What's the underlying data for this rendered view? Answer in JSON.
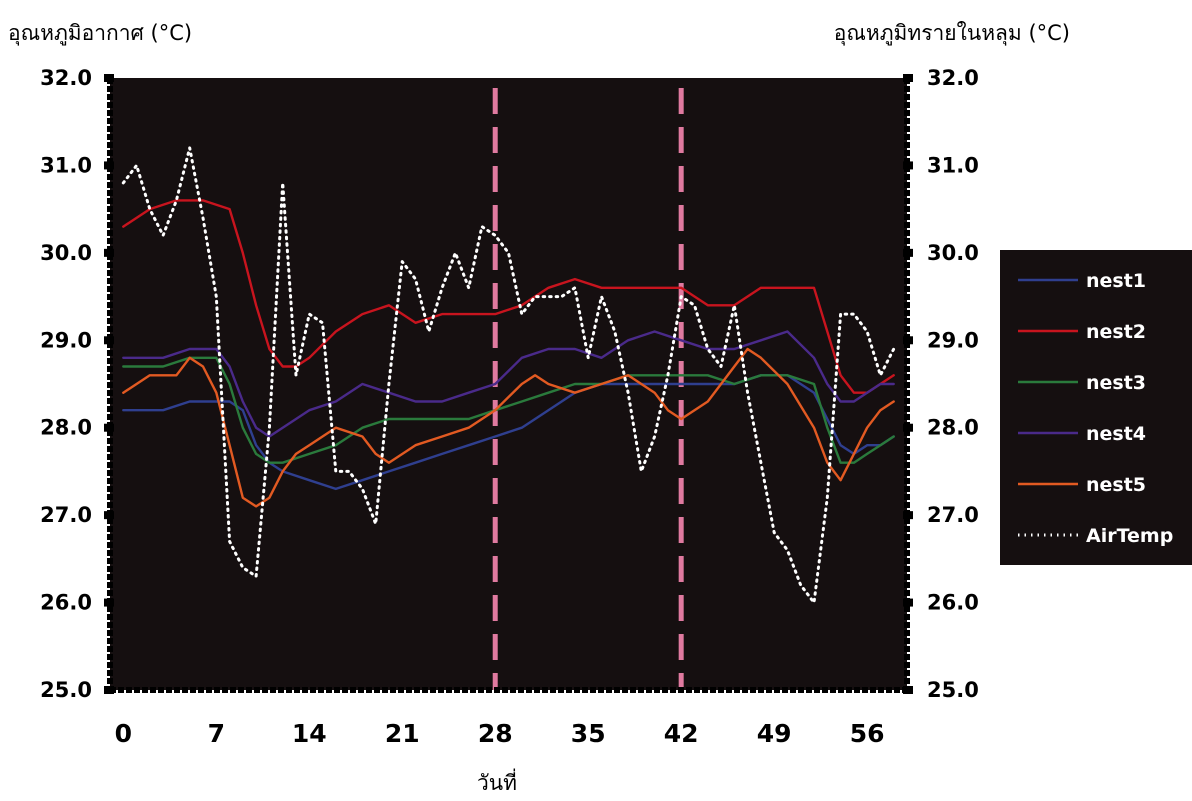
{
  "chart_data": {
    "type": "line",
    "ylabel_left": "อุณหภูมิอากาศ (°C)",
    "ylabel_right": "อุณหภูมิทรายในหลุม (°C)",
    "xlabel": "วันที่",
    "xlim": [
      -1,
      59
    ],
    "ylim": [
      25,
      32
    ],
    "xticks": [
      "0",
      "7",
      "14",
      "21",
      "28",
      "35",
      "42",
      "49",
      "56"
    ],
    "yticks": [
      "25.0",
      "26.0",
      "27.0",
      "28.0",
      "29.0",
      "30.0",
      "31.0",
      "32.0"
    ],
    "vlines": [
      28,
      42
    ],
    "legend_position": "right",
    "series": [
      {
        "name": "nest1",
        "color": "#2f3f8f",
        "dash": "solid",
        "x": [
          0,
          3,
          5,
          7,
          8,
          9,
          10,
          11,
          12,
          14,
          16,
          18,
          20,
          22,
          24,
          26,
          28,
          30,
          32,
          34,
          36,
          38,
          40,
          42,
          44,
          46,
          48,
          50,
          52,
          53,
          54,
          55,
          56,
          57,
          58
        ],
        "y": [
          28.2,
          28.2,
          28.3,
          28.3,
          28.3,
          28.2,
          27.8,
          27.6,
          27.5,
          27.4,
          27.3,
          27.4,
          27.5,
          27.6,
          27.7,
          27.8,
          27.9,
          28.0,
          28.2,
          28.4,
          28.5,
          28.5,
          28.5,
          28.5,
          28.5,
          28.5,
          28.6,
          28.6,
          28.4,
          28.1,
          27.8,
          27.7,
          27.8,
          27.8,
          27.9
        ]
      },
      {
        "name": "nest2",
        "color": "#c8141e",
        "dash": "solid",
        "x": [
          0,
          2,
          4,
          6,
          8,
          9,
          10,
          11,
          12,
          13,
          14,
          16,
          18,
          20,
          22,
          24,
          26,
          28,
          30,
          32,
          34,
          36,
          38,
          40,
          42,
          44,
          46,
          48,
          50,
          52,
          53,
          54,
          55,
          56,
          57,
          58
        ],
        "y": [
          30.3,
          30.5,
          30.6,
          30.6,
          30.5,
          30.0,
          29.4,
          28.9,
          28.7,
          28.7,
          28.8,
          29.1,
          29.3,
          29.4,
          29.2,
          29.3,
          29.3,
          29.3,
          29.4,
          29.6,
          29.7,
          29.6,
          29.6,
          29.6,
          29.6,
          29.4,
          29.4,
          29.6,
          29.6,
          29.6,
          29.1,
          28.6,
          28.4,
          28.4,
          28.5,
          28.6
        ]
      },
      {
        "name": "nest3",
        "color": "#2a7a3c",
        "dash": "solid",
        "x": [
          0,
          3,
          5,
          7,
          8,
          9,
          10,
          11,
          12,
          14,
          16,
          18,
          20,
          22,
          24,
          26,
          28,
          30,
          32,
          34,
          36,
          38,
          40,
          42,
          44,
          46,
          48,
          50,
          52,
          53,
          54,
          55,
          56,
          57,
          58
        ],
        "y": [
          28.7,
          28.7,
          28.8,
          28.8,
          28.5,
          28.0,
          27.7,
          27.6,
          27.6,
          27.7,
          27.8,
          28.0,
          28.1,
          28.1,
          28.1,
          28.1,
          28.2,
          28.3,
          28.4,
          28.5,
          28.5,
          28.6,
          28.6,
          28.6,
          28.6,
          28.5,
          28.6,
          28.6,
          28.5,
          28.0,
          27.6,
          27.6,
          27.7,
          27.8,
          27.9
        ]
      },
      {
        "name": "nest4",
        "color": "#4a2a8a",
        "dash": "solid",
        "x": [
          0,
          3,
          5,
          7,
          8,
          9,
          10,
          11,
          12,
          14,
          16,
          18,
          20,
          22,
          24,
          26,
          28,
          30,
          32,
          34,
          36,
          38,
          40,
          42,
          44,
          46,
          48,
          50,
          52,
          53,
          54,
          55,
          56,
          57,
          58
        ],
        "y": [
          28.8,
          28.8,
          28.9,
          28.9,
          28.7,
          28.3,
          28.0,
          27.9,
          28.0,
          28.2,
          28.3,
          28.5,
          28.4,
          28.3,
          28.3,
          28.4,
          28.5,
          28.8,
          28.9,
          28.9,
          28.8,
          29.0,
          29.1,
          29.0,
          28.9,
          28.9,
          29.0,
          29.1,
          28.8,
          28.5,
          28.3,
          28.3,
          28.4,
          28.5,
          28.5
        ]
      },
      {
        "name": "nest5",
        "color": "#e25a22",
        "dash": "solid",
        "x": [
          0,
          2,
          4,
          5,
          6,
          7,
          8,
          9,
          10,
          11,
          12,
          13,
          14,
          16,
          18,
          19,
          20,
          22,
          24,
          26,
          28,
          30,
          31,
          32,
          34,
          36,
          38,
          40,
          41,
          42,
          44,
          46,
          47,
          48,
          50,
          52,
          53,
          54,
          55,
          56,
          57,
          58
        ],
        "y": [
          28.4,
          28.6,
          28.6,
          28.8,
          28.7,
          28.4,
          27.8,
          27.2,
          27.1,
          27.2,
          27.5,
          27.7,
          27.8,
          28.0,
          27.9,
          27.7,
          27.6,
          27.8,
          27.9,
          28.0,
          28.2,
          28.5,
          28.6,
          28.5,
          28.4,
          28.5,
          28.6,
          28.4,
          28.2,
          28.1,
          28.3,
          28.7,
          28.9,
          28.8,
          28.5,
          28.0,
          27.6,
          27.4,
          27.7,
          28.0,
          28.2,
          28.3
        ]
      },
      {
        "name": "AirTemp",
        "color": "#ffffff",
        "dash": "dotted",
        "x": [
          0,
          1,
          2,
          3,
          4,
          5,
          6,
          7,
          8,
          9,
          10,
          11,
          12,
          13,
          14,
          15,
          16,
          17,
          18,
          19,
          20,
          21,
          22,
          23,
          24,
          25,
          26,
          27,
          28,
          29,
          30,
          31,
          32,
          33,
          34,
          35,
          36,
          37,
          38,
          39,
          40,
          41,
          42,
          43,
          44,
          45,
          46,
          47,
          48,
          49,
          50,
          51,
          52,
          53,
          54,
          55,
          56,
          57,
          58
        ],
        "y": [
          30.8,
          31.0,
          30.5,
          30.2,
          30.6,
          31.2,
          30.4,
          29.5,
          26.7,
          26.4,
          26.3,
          28.0,
          30.8,
          28.6,
          29.3,
          29.2,
          27.5,
          27.5,
          27.3,
          26.9,
          28.5,
          29.9,
          29.7,
          29.1,
          29.6,
          30.0,
          29.6,
          30.3,
          30.2,
          30.0,
          29.3,
          29.5,
          29.5,
          29.5,
          29.6,
          28.8,
          29.5,
          29.1,
          28.4,
          27.5,
          27.9,
          28.6,
          29.5,
          29.4,
          28.9,
          28.7,
          29.4,
          28.4,
          27.6,
          26.8,
          26.6,
          26.2,
          26.0,
          27.2,
          29.3,
          29.3,
          29.1,
          28.6,
          28.9
        ]
      }
    ]
  }
}
